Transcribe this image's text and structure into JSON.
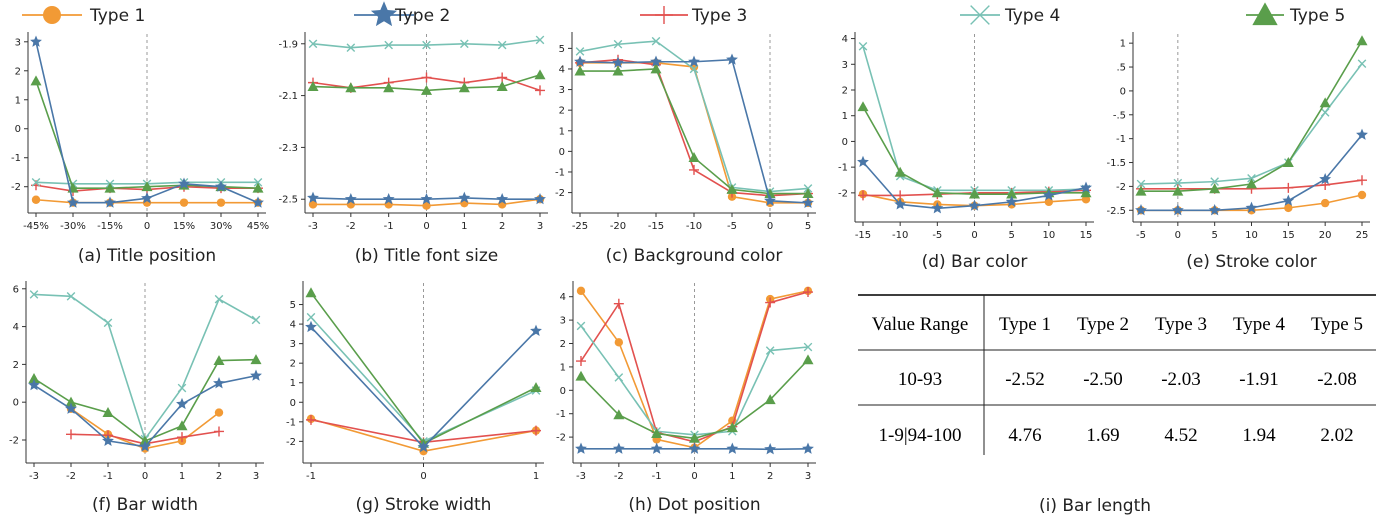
{
  "colors": {
    "t1": "#f29a35",
    "t2": "#4a77a8",
    "t3": "#e2514f",
    "t4": "#78c1b4",
    "t5": "#5a9e4b",
    "zero": "#999999"
  },
  "legend": [
    {
      "label": "Type 1",
      "marker": "circle",
      "color": "#f29a35"
    },
    {
      "label": "Type 2",
      "marker": "star",
      "color": "#4a77a8"
    },
    {
      "label": "Type 3",
      "marker": "plus",
      "color": "#e2514f"
    },
    {
      "label": "Type 4",
      "marker": "x",
      "color": "#78c1b4"
    },
    {
      "label": "Type 5",
      "marker": "triangle",
      "color": "#5a9e4b"
    }
  ],
  "chart_data": [
    {
      "type": "line",
      "caption": "(a) Title position",
      "x": [
        -45,
        -30,
        -15,
        0,
        15,
        30,
        45
      ],
      "xticklabels": [
        "-45%",
        "-30%",
        "-15%",
        "0",
        "15%",
        "30%",
        "45%"
      ],
      "ylim": [
        -2.7,
        3.2
      ],
      "yticks": [
        -2,
        -1,
        0,
        1,
        2,
        3
      ],
      "yticklabels": [
        "-2",
        "-1",
        "0",
        "1",
        "2",
        "3"
      ],
      "series": [
        {
          "marker": "circle",
          "color": "#f29a35",
          "values": [
            -2.45,
            -2.55,
            -2.55,
            -2.55,
            -2.55,
            -2.55,
            -2.55
          ]
        },
        {
          "marker": "star",
          "color": "#4a77a8",
          "values": [
            3.0,
            -2.55,
            -2.55,
            -2.4,
            -1.9,
            -2.0,
            -2.55
          ]
        },
        {
          "marker": "plus",
          "color": "#e2514f",
          "values": [
            -1.95,
            -2.15,
            -2.05,
            -2.1,
            -2.0,
            -2.05,
            -2.05
          ]
        },
        {
          "marker": "x",
          "color": "#78c1b4",
          "values": [
            -1.85,
            -1.9,
            -1.9,
            -1.9,
            -1.85,
            -1.85,
            -1.85
          ]
        },
        {
          "marker": "triangle",
          "color": "#5a9e4b",
          "values": [
            1.65,
            -2.05,
            -2.05,
            -2.0,
            -1.95,
            -2.0,
            -2.05
          ]
        }
      ]
    },
    {
      "type": "line",
      "caption": "(b) Title font size",
      "x": [
        -3,
        -2,
        -1,
        0,
        1,
        2,
        3
      ],
      "xticklabels": [
        "-3",
        "-2",
        "-1",
        "0",
        "1",
        "2",
        "3"
      ],
      "ylim": [
        -2.53,
        -1.87
      ],
      "yticks": [
        -1.9,
        -2.1,
        -2.3,
        -2.5
      ],
      "yticklabels": [
        "-1.9",
        "-2.1",
        "-2.3",
        "-2.5"
      ],
      "series": [
        {
          "marker": "circle",
          "color": "#f29a35",
          "values": [
            -2.52,
            -2.52,
            -2.52,
            -2.525,
            -2.515,
            -2.52,
            -2.5
          ]
        },
        {
          "marker": "star",
          "color": "#4a77a8",
          "values": [
            -2.495,
            -2.5,
            -2.5,
            -2.5,
            -2.495,
            -2.5,
            -2.5
          ]
        },
        {
          "marker": "plus",
          "color": "#e2514f",
          "values": [
            -2.05,
            -2.07,
            -2.05,
            -2.03,
            -2.05,
            -2.03,
            -2.08
          ]
        },
        {
          "marker": "x",
          "color": "#78c1b4",
          "values": [
            -1.9,
            -1.915,
            -1.905,
            -1.905,
            -1.9,
            -1.905,
            -1.885
          ]
        },
        {
          "marker": "triangle",
          "color": "#5a9e4b",
          "values": [
            -2.065,
            -2.07,
            -2.07,
            -2.08,
            -2.07,
            -2.065,
            -2.02
          ]
        }
      ]
    },
    {
      "type": "line",
      "caption": "(c) Background color",
      "x": [
        -25,
        -20,
        -15,
        -10,
        -5,
        0,
        5
      ],
      "xticklabels": [
        "-25",
        "-20",
        "-15",
        "-10",
        "-5",
        "0",
        "5"
      ],
      "ylim": [
        -2.7,
        5.6
      ],
      "yticks": [
        -2,
        -1,
        0,
        1,
        2,
        3,
        4,
        5
      ],
      "yticklabels": [
        "-2",
        "-1",
        "0",
        "1",
        "2",
        "3",
        "4",
        "5"
      ],
      "series": [
        {
          "marker": "circle",
          "color": "#f29a35",
          "values": [
            4.3,
            4.3,
            4.3,
            4.1,
            -2.2,
            -2.5,
            -2.5
          ]
        },
        {
          "marker": "star",
          "color": "#4a77a8",
          "values": [
            4.35,
            4.3,
            4.35,
            4.35,
            4.45,
            -2.4,
            -2.5
          ]
        },
        {
          "marker": "plus",
          "color": "#e2514f",
          "values": [
            4.3,
            4.45,
            4.2,
            -0.9,
            -2.0,
            -2.15,
            -2.05
          ]
        },
        {
          "marker": "x",
          "color": "#78c1b4",
          "values": [
            4.85,
            5.2,
            5.35,
            4.0,
            -1.75,
            -1.95,
            -1.8
          ]
        },
        {
          "marker": "triangle",
          "color": "#5a9e4b",
          "values": [
            3.9,
            3.9,
            4.0,
            -0.3,
            -1.85,
            -2.05,
            -2.05
          ]
        }
      ]
    },
    {
      "type": "line",
      "caption": "(d) Bar color",
      "x": [
        -15,
        -10,
        -5,
        0,
        5,
        10,
        15
      ],
      "xticklabels": [
        "-15",
        "-10",
        "-5",
        "0",
        "5",
        "10",
        "15"
      ],
      "ylim": [
        -2.9,
        4.1
      ],
      "yticks": [
        -2,
        -1,
        0,
        1,
        2,
        3,
        4
      ],
      "yticklabels": [
        "-2",
        "-1",
        "0",
        "1",
        "2",
        "3",
        "4"
      ],
      "series": [
        {
          "marker": "circle",
          "color": "#f29a35",
          "values": [
            -2.05,
            -2.35,
            -2.45,
            -2.5,
            -2.45,
            -2.35,
            -2.25
          ]
        },
        {
          "marker": "star",
          "color": "#4a77a8",
          "values": [
            -0.8,
            -2.45,
            -2.6,
            -2.5,
            -2.35,
            -2.1,
            -1.8
          ]
        },
        {
          "marker": "plus",
          "color": "#e2514f",
          "values": [
            -2.1,
            -2.1,
            -2.05,
            -2.0,
            -2.0,
            -1.95,
            -1.9
          ]
        },
        {
          "marker": "x",
          "color": "#78c1b4",
          "values": [
            3.7,
            -1.35,
            -1.9,
            -1.9,
            -1.9,
            -1.9,
            -1.85
          ]
        },
        {
          "marker": "triangle",
          "color": "#5a9e4b",
          "values": [
            1.35,
            -1.2,
            -2.0,
            -2.05,
            -2.05,
            -2.0,
            -2.0
          ]
        }
      ]
    },
    {
      "type": "line",
      "caption": "(e) Stroke color",
      "x": [
        -5,
        0,
        5,
        10,
        15,
        20,
        25
      ],
      "xticklabels": [
        "-5",
        "0",
        "5",
        "10",
        "15",
        "20",
        "25"
      ],
      "ylim": [
        -2.62,
        1.15
      ],
      "yticks": [
        -2.5,
        -2,
        -1.5,
        -1,
        -0.5,
        0,
        0.5,
        1
      ],
      "yticklabels": [
        "-2.5",
        "-2",
        "-1.5",
        "-1",
        "-.5",
        "0",
        ".5",
        "1"
      ],
      "series": [
        {
          "marker": "circle",
          "color": "#f29a35",
          "values": [
            -2.5,
            -2.5,
            -2.5,
            -2.5,
            -2.45,
            -2.35,
            -2.18
          ]
        },
        {
          "marker": "star",
          "color": "#4a77a8",
          "values": [
            -2.5,
            -2.5,
            -2.5,
            -2.45,
            -2.3,
            -1.85,
            -0.92
          ]
        },
        {
          "marker": "plus",
          "color": "#e2514f",
          "values": [
            -2.05,
            -2.05,
            -2.05,
            -2.05,
            -2.03,
            -1.97,
            -1.87
          ]
        },
        {
          "marker": "x",
          "color": "#78c1b4",
          "values": [
            -1.95,
            -1.93,
            -1.9,
            -1.83,
            -1.5,
            -0.45,
            0.57
          ]
        },
        {
          "marker": "triangle",
          "color": "#5a9e4b",
          "values": [
            -2.1,
            -2.1,
            -2.05,
            -1.95,
            -1.5,
            -0.25,
            1.05
          ]
        }
      ]
    },
    {
      "type": "line",
      "caption": "(f) Bar width",
      "x": [
        -3,
        -2,
        -1,
        0,
        1,
        2,
        3
      ],
      "xticklabels": [
        "-3",
        "-2",
        "-1",
        "0",
        "1",
        "2",
        "3"
      ],
      "ylim": [
        -2.9,
        6.2
      ],
      "yticks": [
        -2,
        0,
        2,
        4,
        6
      ],
      "yticklabels": [
        "-2",
        "0",
        "2",
        "4",
        "6"
      ],
      "series": [
        {
          "marker": "circle",
          "color": "#f29a35",
          "values": [
            null,
            -0.35,
            -1.7,
            -2.45,
            -2.05,
            -0.55,
            null
          ]
        },
        {
          "marker": "star",
          "color": "#4a77a8",
          "values": [
            0.9,
            -0.35,
            -2.05,
            -2.35,
            -0.1,
            1.0,
            1.4
          ]
        },
        {
          "marker": "plus",
          "color": "#e2514f",
          "values": [
            null,
            -1.7,
            -1.75,
            -2.2,
            -1.85,
            -1.55,
            null
          ]
        },
        {
          "marker": "x",
          "color": "#78c1b4",
          "values": [
            5.7,
            5.6,
            4.2,
            -1.95,
            0.75,
            5.45,
            4.35
          ]
        },
        {
          "marker": "triangle",
          "color": "#5a9e4b",
          "values": [
            1.25,
            0.0,
            -0.55,
            -2.05,
            -1.25,
            2.2,
            2.25
          ]
        }
      ]
    },
    {
      "type": "line",
      "caption": "(g) Stroke width",
      "x": [
        -1,
        0,
        1
      ],
      "xticklabels": [
        "-1",
        "0",
        "1"
      ],
      "ylim": [
        -2.8,
        6.0
      ],
      "yticks": [
        -2,
        -1,
        0,
        1,
        2,
        3,
        4,
        5
      ],
      "yticklabels": [
        "-2",
        "-1",
        "0",
        "1",
        "2",
        "3",
        "4",
        "5"
      ],
      "series": [
        {
          "marker": "circle",
          "color": "#f29a35",
          "values": [
            -0.85,
            -2.5,
            -1.45
          ]
        },
        {
          "marker": "star",
          "color": "#4a77a8",
          "values": [
            3.85,
            -2.3,
            3.65
          ]
        },
        {
          "marker": "plus",
          "color": "#e2514f",
          "values": [
            -0.9,
            -2.05,
            -1.45
          ]
        },
        {
          "marker": "x",
          "color": "#78c1b4",
          "values": [
            4.35,
            -2.0,
            0.6
          ]
        },
        {
          "marker": "triangle",
          "color": "#5a9e4b",
          "values": [
            5.6,
            -2.1,
            0.75
          ]
        }
      ]
    },
    {
      "type": "line",
      "caption": "(h) Dot position",
      "x": [
        -3,
        -2,
        -1,
        0,
        1,
        2,
        3
      ],
      "xticklabels": [
        "-3",
        "-2",
        "-1",
        "0",
        "1",
        "2",
        "3"
      ],
      "ylim": [
        -2.85,
        4.5
      ],
      "yticks": [
        -2,
        -1,
        0,
        1,
        2,
        3,
        4
      ],
      "yticklabels": [
        "-2",
        "-1",
        "0",
        "1",
        "2",
        "3",
        "4"
      ],
      "series": [
        {
          "marker": "circle",
          "color": "#f29a35",
          "values": [
            4.25,
            2.05,
            -2.1,
            -2.45,
            -1.3,
            3.9,
            4.25
          ]
        },
        {
          "marker": "star",
          "color": "#4a77a8",
          "values": [
            -2.5,
            -2.5,
            -2.5,
            -2.5,
            -2.5,
            -2.52,
            -2.5
          ]
        },
        {
          "marker": "plus",
          "color": "#e2514f",
          "values": [
            1.25,
            3.7,
            -1.8,
            -2.2,
            -1.55,
            3.75,
            4.2
          ]
        },
        {
          "marker": "x",
          "color": "#78c1b4",
          "values": [
            2.75,
            0.55,
            -1.75,
            -1.9,
            -1.75,
            1.7,
            1.85
          ]
        },
        {
          "marker": "triangle",
          "color": "#5a9e4b",
          "values": [
            0.6,
            -1.05,
            -1.85,
            -2.05,
            -1.6,
            -0.4,
            1.3
          ]
        }
      ]
    },
    {
      "type": "table",
      "caption": "(i) Bar length",
      "columns": [
        "Value Range",
        "Type 1",
        "Type 2",
        "Type 3",
        "Type 4",
        "Type 5"
      ],
      "rows": [
        [
          "10-93",
          "-2.52",
          "-2.50",
          "-2.03",
          "-1.91",
          "-2.08"
        ],
        [
          "1-9|94-100",
          "4.76",
          "1.69",
          "4.52",
          "1.94",
          "2.02"
        ]
      ]
    }
  ]
}
